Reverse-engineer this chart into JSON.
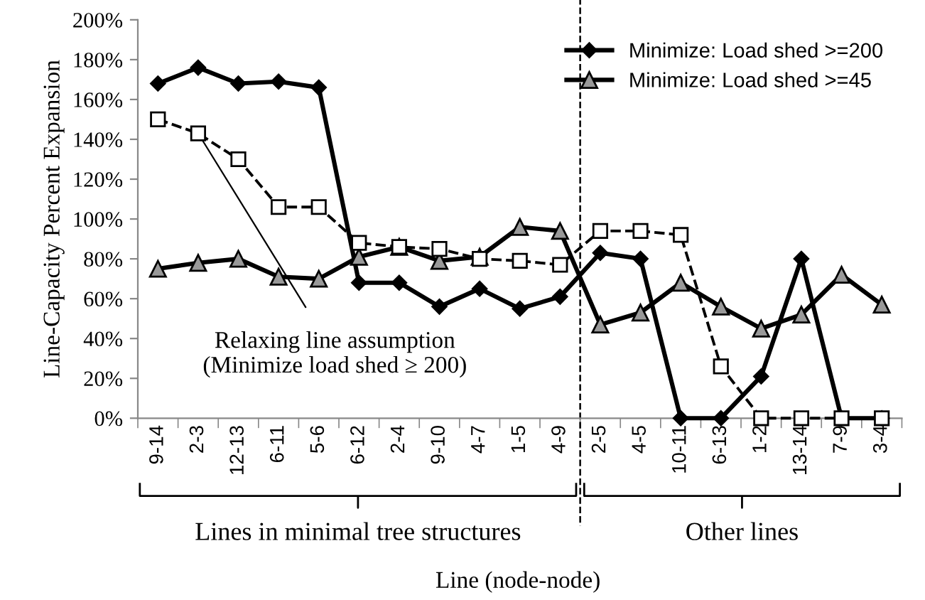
{
  "chart_data": {
    "type": "line",
    "ylabel": "Line-Capacity Percent Expansion",
    "xlabel": "Line (node-node)",
    "categories": [
      "9-14",
      "2-3",
      "12-13",
      "6-11",
      "5-6",
      "6-12",
      "2-4",
      "9-10",
      "4-7",
      "1-5",
      "4-9",
      "2-5",
      "4-5",
      "10-11",
      "6-13",
      "1-2",
      "13-14",
      "7-9",
      "3-4"
    ],
    "series": [
      {
        "name": "Minimize: Load shed >=200",
        "color": "#000000",
        "marker": "diamond",
        "line_style": "solid",
        "values": [
          168,
          176,
          168,
          169,
          166,
          68,
          68,
          56,
          65,
          55,
          61,
          83,
          80,
          0,
          0,
          21,
          80,
          0,
          0
        ]
      },
      {
        "name": "Minimize: Load shed >=45",
        "color": "#000000",
        "marker": "triangle",
        "line_style": "solid",
        "values": [
          75,
          78,
          80,
          71,
          70,
          81,
          86,
          79,
          81,
          96,
          94,
          47,
          53,
          68,
          56,
          45,
          52,
          72,
          57
        ]
      },
      {
        "color": "#000000",
        "marker": "square",
        "line_style": "dashed",
        "values": [
          150,
          143,
          130,
          106,
          106,
          88,
          86,
          85,
          80,
          79,
          77,
          94,
          94,
          92,
          26,
          0,
          0,
          0,
          0
        ]
      }
    ],
    "ylim": [
      0,
      200
    ],
    "yticks": [
      {
        "value": 0,
        "label": "0%"
      },
      {
        "value": 20,
        "label": "20%"
      },
      {
        "value": 40,
        "label": "40%"
      },
      {
        "value": 60,
        "label": "60%"
      },
      {
        "value": 80,
        "label": "80%"
      },
      {
        "value": 100,
        "label": "100%"
      },
      {
        "value": 120,
        "label": "120%"
      },
      {
        "value": 140,
        "label": "140%"
      },
      {
        "value": 160,
        "label": "160%"
      },
      {
        "value": 180,
        "label": "180%"
      },
      {
        "value": 200,
        "label": "200%"
      }
    ],
    "annotations": [
      {
        "text": "Relaxing line assumption\n(Minimize load shed ≥ 200)",
        "x": "2-3",
        "y": 143
      },
      "Lines in minimal tree structures",
      "Other lines"
    ],
    "legend": "top right",
    "grid": false
  }
}
